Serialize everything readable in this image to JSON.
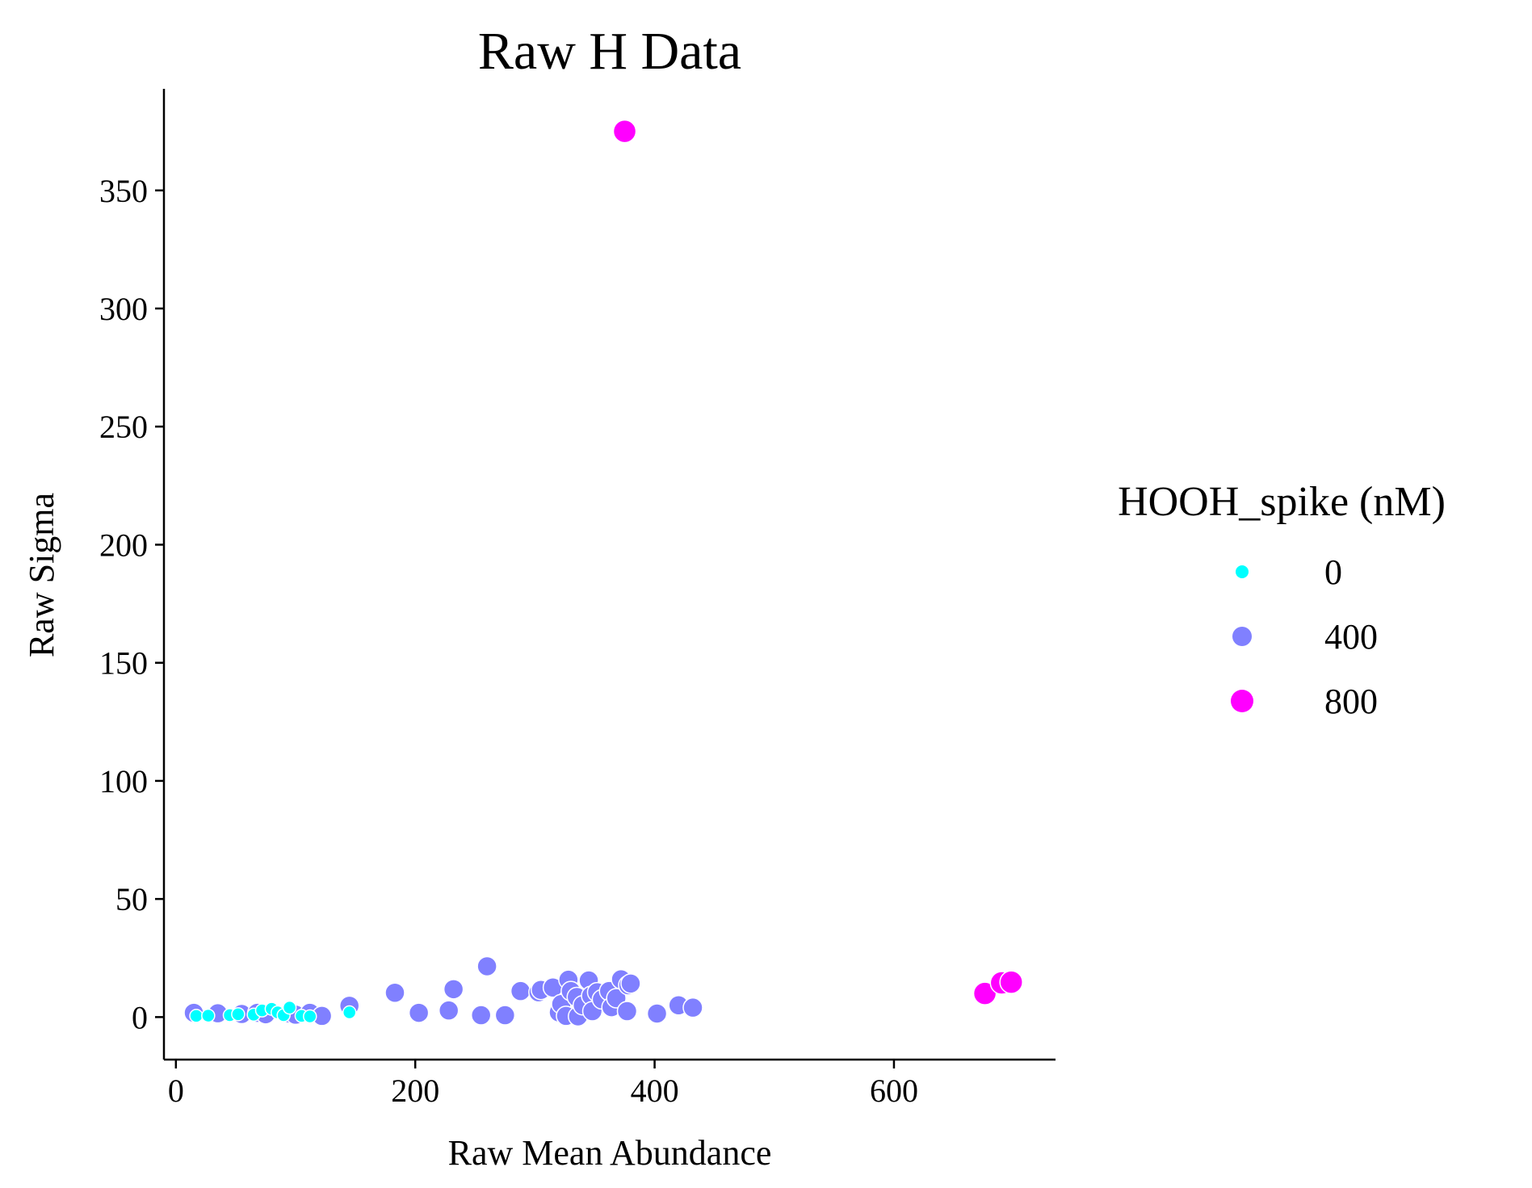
{
  "chart_data": {
    "type": "scatter",
    "title": "Raw H Data",
    "xlabel": "Raw Mean Abundance",
    "ylabel": "Raw Sigma",
    "xlim": [
      -10,
      735
    ],
    "ylim": [
      -18,
      393
    ],
    "xticks": [
      0,
      200,
      400,
      600
    ],
    "yticks": [
      0,
      50,
      100,
      150,
      200,
      250,
      300,
      350
    ],
    "grid": false,
    "legend": {
      "title": "HOOH_spike (nM)",
      "placement": "right"
    },
    "series": [
      {
        "name": "400",
        "color": "#8080ff",
        "points": [
          [
            15,
            1.8
          ],
          [
            35,
            1.6
          ],
          [
            55,
            1.3
          ],
          [
            68,
            1.8
          ],
          [
            75,
            1.2
          ],
          [
            95,
            1.5
          ],
          [
            100,
            1.0
          ],
          [
            112,
            1.8
          ],
          [
            122,
            0.5
          ],
          [
            145,
            4.8
          ],
          [
            183,
            10.3
          ],
          [
            203,
            1.8
          ],
          [
            228,
            2.8
          ],
          [
            232,
            11.8
          ],
          [
            255,
            0.8
          ],
          [
            260,
            21.5
          ],
          [
            275,
            0.8
          ],
          [
            288,
            11.0
          ],
          [
            303,
            10.5
          ],
          [
            305,
            11.5
          ],
          [
            315,
            12.5
          ],
          [
            320,
            2.0
          ],
          [
            322,
            5.5
          ],
          [
            326,
            0.5
          ],
          [
            328,
            15.8
          ],
          [
            330,
            11.0
          ],
          [
            335,
            8.5
          ],
          [
            336,
            0.3
          ],
          [
            340,
            5.0
          ],
          [
            345,
            15.5
          ],
          [
            347,
            9.0
          ],
          [
            348,
            2.5
          ],
          [
            352,
            10.5
          ],
          [
            356,
            7.5
          ],
          [
            362,
            11.0
          ],
          [
            364,
            4.2
          ],
          [
            368,
            8.0
          ],
          [
            372,
            16.0
          ],
          [
            377,
            2.5
          ],
          [
            378,
            13.5
          ],
          [
            380,
            14.2
          ],
          [
            402,
            1.5
          ],
          [
            420,
            5.0
          ],
          [
            432,
            4.0
          ]
        ]
      },
      {
        "name": "0",
        "color": "#00ffff",
        "points": [
          [
            17,
            0.5
          ],
          [
            27,
            0.6
          ],
          [
            45,
            0.8
          ],
          [
            52,
            1.2
          ],
          [
            65,
            1.0
          ],
          [
            72,
            2.8
          ],
          [
            80,
            3.5
          ],
          [
            85,
            2.0
          ],
          [
            90,
            0.8
          ],
          [
            95,
            4.0
          ],
          [
            105,
            0.5
          ],
          [
            112,
            0.3
          ],
          [
            145,
            2.0
          ]
        ]
      },
      {
        "name": "800",
        "color": "#ff00ff",
        "points": [
          [
            375,
            375.0
          ],
          [
            676,
            10.0
          ],
          [
            690,
            14.5
          ],
          [
            698,
            14.8
          ]
        ]
      }
    ]
  }
}
